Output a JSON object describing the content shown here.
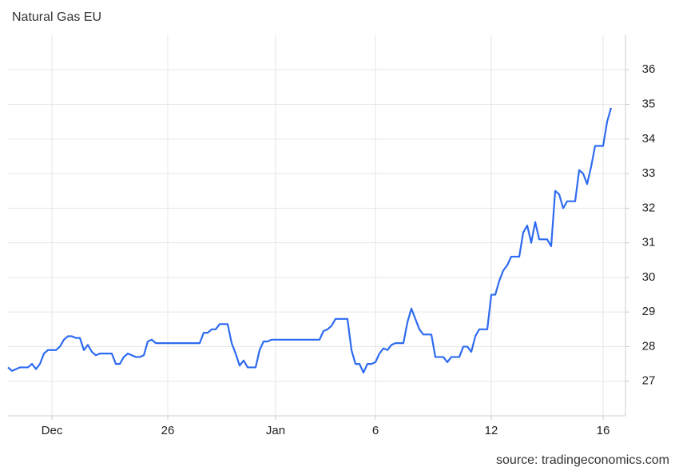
{
  "chart_data": {
    "type": "line",
    "title": "Natural Gas EU",
    "source": "source: tradingeconomics.com",
    "categories": [
      null,
      null,
      null,
      null,
      null,
      null,
      null,
      null,
      null,
      null,
      null,
      "Dec",
      null,
      null,
      null,
      null,
      null,
      null,
      null,
      null,
      null,
      null,
      null,
      null,
      null,
      null,
      null,
      null,
      null,
      null,
      null,
      null,
      null,
      null,
      null,
      null,
      null,
      null,
      null,
      null,
      "26",
      null,
      null,
      null,
      null,
      null,
      null,
      null,
      null,
      null,
      null,
      null,
      null,
      null,
      null,
      null,
      null,
      null,
      null,
      null,
      null,
      null,
      null,
      null,
      null,
      null,
      null,
      "Jan",
      null,
      null,
      null,
      null,
      null,
      null,
      null,
      null,
      null,
      null,
      null,
      null,
      null,
      null,
      null,
      null,
      null,
      null,
      null,
      null,
      null,
      null,
      null,
      null,
      "6",
      null,
      null,
      null,
      null,
      null,
      null,
      null,
      null,
      null,
      null,
      null,
      null,
      null,
      null,
      null,
      null,
      null,
      null,
      null,
      null,
      null,
      null,
      null,
      null,
      null,
      null,
      null,
      null,
      "12",
      null,
      null,
      null,
      null,
      null,
      null,
      null,
      null,
      null,
      null,
      null,
      null,
      null,
      null,
      null,
      null,
      null,
      null,
      null,
      null,
      null,
      null,
      null,
      null,
      null,
      null,
      null,
      "16",
      null,
      null
    ],
    "values": [
      27.4,
      27.3,
      27.35,
      27.4,
      27.4,
      27.4,
      27.5,
      27.35,
      27.5,
      27.8,
      27.9,
      27.9,
      27.9,
      28.0,
      28.2,
      28.3,
      28.3,
      28.25,
      28.25,
      27.9,
      28.05,
      27.85,
      27.75,
      27.8,
      27.8,
      27.8,
      27.8,
      27.5,
      27.5,
      27.7,
      27.8,
      27.75,
      27.7,
      27.7,
      27.75,
      28.15,
      28.2,
      28.1,
      28.1,
      28.1,
      28.1,
      28.1,
      28.1,
      28.1,
      28.1,
      28.1,
      28.1,
      28.1,
      28.1,
      28.4,
      28.4,
      28.5,
      28.5,
      28.65,
      28.65,
      28.65,
      28.1,
      27.8,
      27.45,
      27.6,
      27.4,
      27.4,
      27.4,
      27.9,
      28.15,
      28.15,
      28.2,
      28.2,
      28.2,
      28.2,
      28.2,
      28.2,
      28.2,
      28.2,
      28.2,
      28.2,
      28.2,
      28.2,
      28.2,
      28.45,
      28.5,
      28.6,
      28.8,
      28.8,
      28.8,
      28.8,
      27.9,
      27.5,
      27.5,
      27.25,
      27.5,
      27.5,
      27.55,
      27.8,
      27.95,
      27.9,
      28.05,
      28.1,
      28.1,
      28.1,
      28.7,
      29.1,
      28.8,
      28.5,
      28.35,
      28.35,
      28.35,
      27.7,
      27.7,
      27.7,
      27.55,
      27.7,
      27.7,
      27.7,
      28.0,
      28.0,
      27.85,
      28.3,
      28.5,
      28.5,
      28.5,
      29.5,
      29.5,
      29.9,
      30.2,
      30.35,
      30.6,
      30.6,
      30.6,
      31.3,
      31.5,
      31.0,
      31.6,
      31.1,
      31.1,
      31.1,
      30.9,
      32.5,
      32.4,
      32.0,
      32.2,
      32.2,
      32.2,
      33.1,
      33.0,
      32.7,
      33.2,
      33.8,
      33.8,
      33.8,
      34.5,
      34.9
    ],
    "color": "#2e6bf0",
    "ylim": [
      26,
      37
    ],
    "yticks": [
      27,
      28,
      29,
      30,
      31,
      32,
      33,
      34,
      35,
      36
    ],
    "grid": true
  }
}
